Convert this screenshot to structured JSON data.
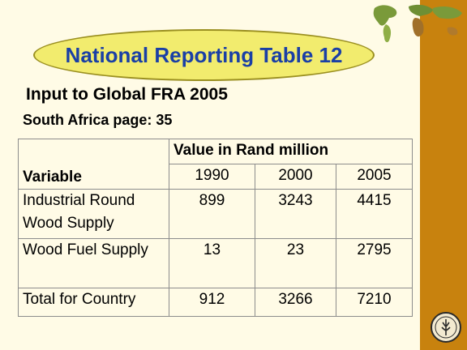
{
  "slide": {
    "title": "National Reporting Table 12",
    "subtitle": "Input to Global FRA 2005",
    "page_ref": "South Africa page: 35"
  },
  "table": {
    "group_header": "Value in Rand million",
    "variable_header": "Variable",
    "years": [
      "1990",
      "2000",
      "2005"
    ],
    "rows": [
      {
        "variable": "Industrial Round Wood Supply",
        "values": [
          "899",
          "3243",
          "4415"
        ]
      },
      {
        "variable": "Wood Fuel Supply",
        "values": [
          "13",
          "23",
          "2795"
        ]
      },
      {
        "variable": "Total for Country",
        "values": [
          "912",
          "3266",
          "7210"
        ]
      }
    ]
  },
  "colors": {
    "title_text": "#1a3fa6",
    "title_oval": "#f2ec6e",
    "sidebar": "#c8820e",
    "background": "#fffbe6"
  },
  "icons": [
    "world-map-decoration",
    "fao-logo-icon"
  ]
}
